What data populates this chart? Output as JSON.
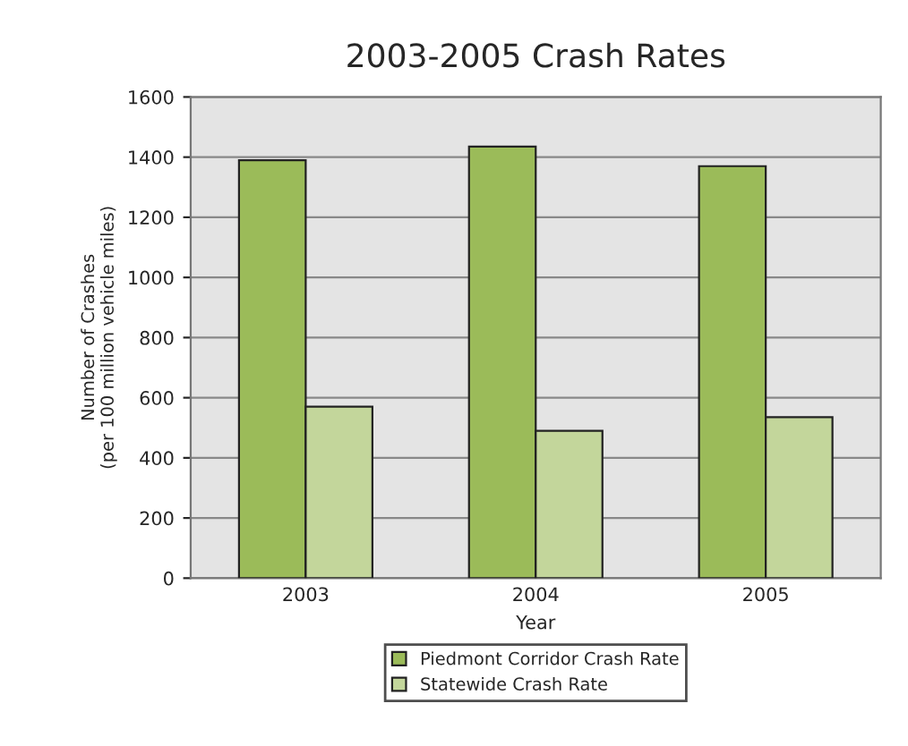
{
  "chart_data": {
    "type": "bar",
    "title": "2003-2005 Crash Rates",
    "xlabel": "Year",
    "ylabel": "Number of Crashes\n(per 100 million vehicle miles)",
    "categories": [
      "2003",
      "2004",
      "2005"
    ],
    "series": [
      {
        "name": "Piedmont Corridor Crash Rate",
        "color": "#9bbb59",
        "values": [
          1390,
          1435,
          1370
        ]
      },
      {
        "name": "Statewide Crash Rate",
        "color": "#c3d69b",
        "values": [
          570,
          490,
          535
        ]
      }
    ],
    "ylim": [
      0,
      1600
    ],
    "yticks": [
      0,
      200,
      400,
      600,
      800,
      1000,
      1200,
      1400,
      1600
    ],
    "grid": "y",
    "legend": "bottom"
  }
}
